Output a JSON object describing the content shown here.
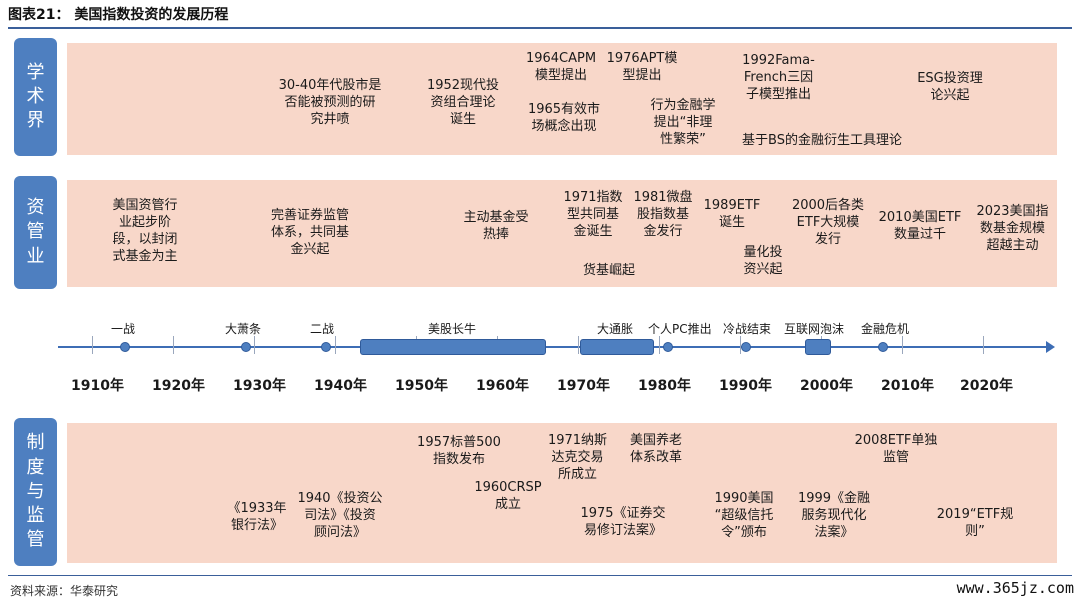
{
  "title": "图表21：  美国指数投资的发展历程",
  "rows": {
    "academic": {
      "label": "学术界",
      "items": [
        "30-40年代股市是\n否能被预测的研\n究井喷",
        "1952现代投\n资组合理论\n诞生",
        "1964CAPM\n模型提出",
        "1965有效市\n场概念出现",
        "1976APT模\n型提出",
        "行为金融学\n提出“非理\n性繁荣”",
        "1992Fama-\nFrench三因\n子模型推出",
        "基于BS的金融衍生工具理论",
        "ESG投资理\n论兴起"
      ]
    },
    "industry": {
      "label": "资管业",
      "items": [
        "美国资管行\n业起步阶\n段，以封闭\n式基金为主",
        "完善证券监管\n体系，共同基\n金兴起",
        "主动基金受\n热捧",
        "1971指数\n型共同基\n金诞生",
        "货基崛起",
        "1981微盘\n股指数基\n金发行",
        "1989ETF\n诞生",
        "量化投\n资兴起",
        "2000后各类\nETF大规模\n发行",
        "2010美国ETF\n数量过千",
        "2023美国指\n数基金规模\n超越主动"
      ]
    },
    "regulation": {
      "label": "制度与监管",
      "items": [
        "《1933年\n银行法》",
        "1940《投资公\n司法》《投资\n顾问法》",
        "1957标普500\n指数发布",
        "1960CRSP\n成立",
        "1971纳斯\n达克交易\n所成立",
        "1975《证券交\n易修订法案》",
        "美国养老\n体系改革",
        "1990美国\n“超级信托\n令”颁布",
        "1999《金融\n服务现代化\n法案》",
        "2008ETF单独\n监管",
        "2019“ETF规\n则”"
      ]
    }
  },
  "timeline": {
    "decades": [
      "1910年",
      "1920年",
      "1930年",
      "1940年",
      "1950年",
      "1960年",
      "1970年",
      "1980年",
      "1990年",
      "2000年",
      "2010年",
      "2020年"
    ],
    "events": [
      "一战",
      "大萧条",
      "二战",
      "美股长牛",
      "大通胀",
      "个人PC推出",
      "冷战结束",
      "互联网泡沫",
      "金融危机"
    ]
  },
  "source": "资料来源：华泰研究",
  "watermark": "www.365jz.com",
  "colors": {
    "label_box": "#4e7fc0",
    "band": "#f8d7c9",
    "axis": "#3d6db5"
  }
}
